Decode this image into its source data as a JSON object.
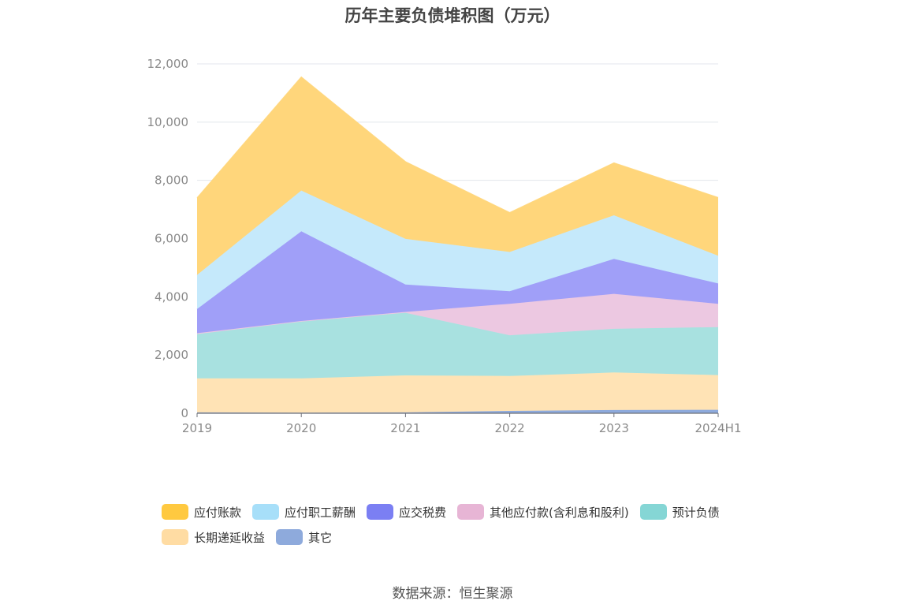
{
  "title": "历年主要负债堆积图（万元）",
  "source": "数据来源：恒生聚源",
  "chart_data": {
    "type": "area",
    "stacked": true,
    "title": "历年主要负债堆积图（万元）",
    "xlabel": "",
    "ylabel": "",
    "categories": [
      "2019",
      "2020",
      "2021",
      "2022",
      "2023",
      "2024H1"
    ],
    "ylim": [
      0,
      12000
    ],
    "yticks": [
      0,
      2000,
      4000,
      6000,
      8000,
      10000,
      12000
    ],
    "ytick_labels": [
      "0",
      "2,000",
      "4,000",
      "6,000",
      "8,000",
      "10,000",
      "12,000"
    ],
    "grid": true,
    "legend_position": "bottom",
    "series": [
      {
        "name": "其它",
        "color": "#8eaadc",
        "values": [
          30,
          20,
          30,
          80,
          110,
          120
        ]
      },
      {
        "name": "长期递延收益",
        "color": "#ffe3b5",
        "values": [
          1170,
          1180,
          1270,
          1200,
          1290,
          1190
        ]
      },
      {
        "name": "预计负债",
        "color": "#a8e1e0",
        "values": [
          1520,
          1950,
          2150,
          1400,
          1500,
          1650
        ]
      },
      {
        "name": "其他应付款(含利息和股利)",
        "color": "#ecc8e1",
        "values": [
          30,
          20,
          30,
          1080,
          1200,
          800
        ]
      },
      {
        "name": "应交税费",
        "color": "#a09ff8",
        "values": [
          830,
          3080,
          940,
          430,
          1200,
          700
        ]
      },
      {
        "name": "应付职工薪酬",
        "color": "#c5e9fb",
        "values": [
          1170,
          1400,
          1570,
          1350,
          1500,
          950
        ]
      },
      {
        "name": "应付账款",
        "color": "#ffd67b",
        "values": [
          2650,
          3900,
          2650,
          1350,
          1800,
          2000
        ]
      }
    ],
    "legend_order": [
      "应付账款",
      "应付职工薪酬",
      "应交税费",
      "其他应付款(含利息和股利)",
      "预计负债",
      "长期递延收益",
      "其它"
    ],
    "legend_colors": {
      "应付账款": "#ffc940",
      "应付职工薪酬": "#a7dff9",
      "应交税费": "#7b7ff3",
      "其他应付款(含利息和股利)": "#e7b5d5",
      "预计负债": "#85d6d5",
      "长期递延收益": "#ffdca3",
      "其它": "#8eaadc"
    }
  }
}
